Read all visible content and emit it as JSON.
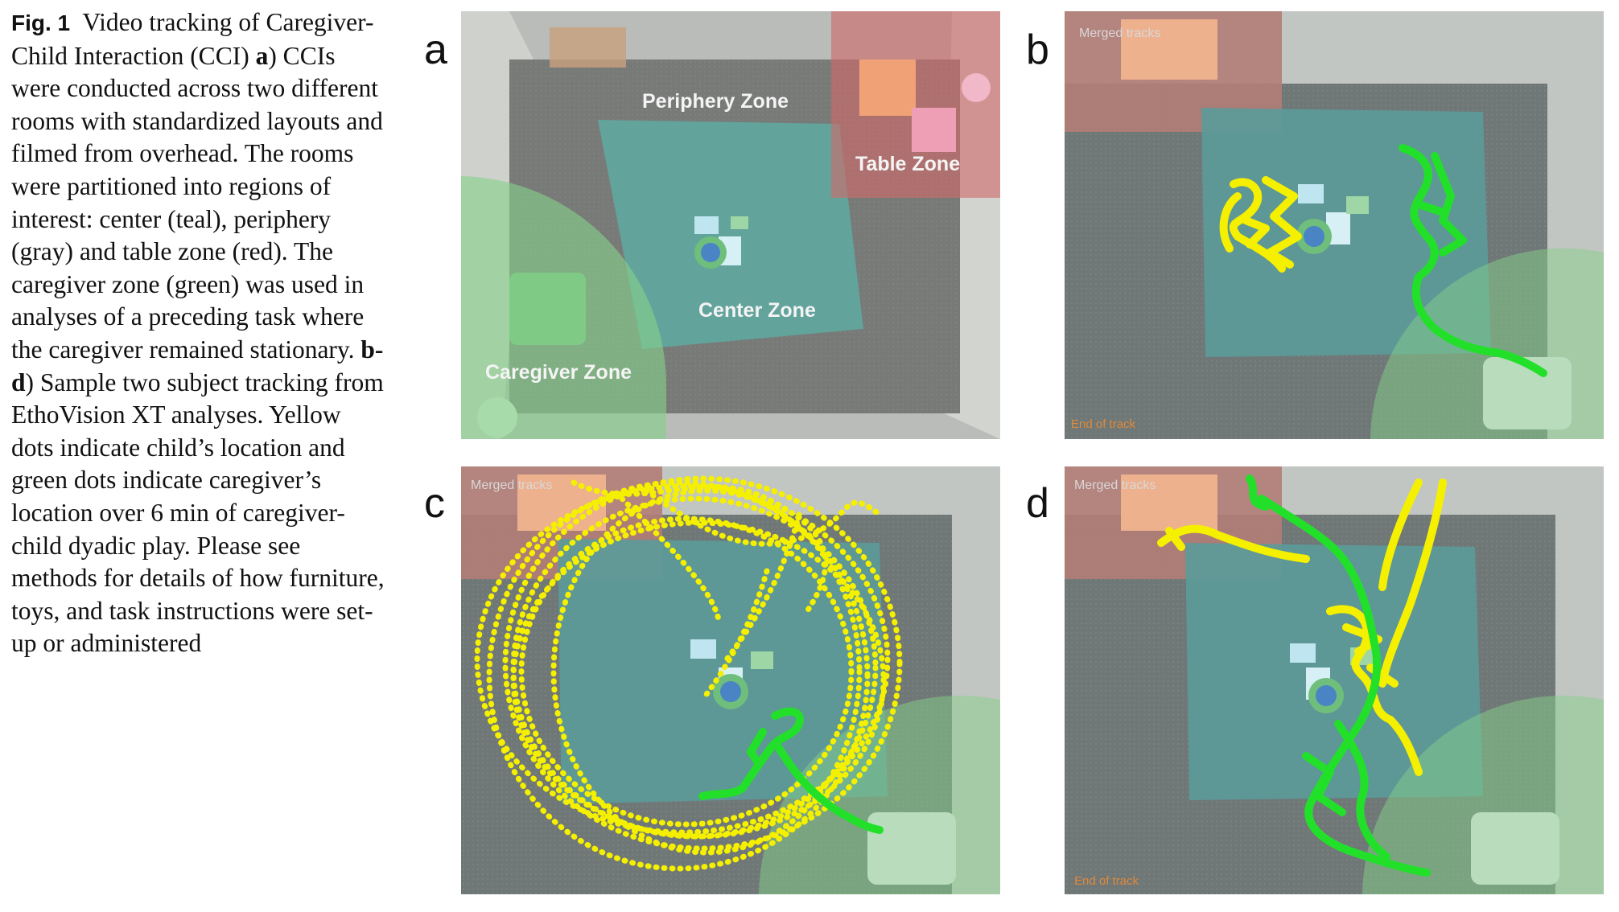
{
  "caption": {
    "fig_label": "Fig. 1",
    "title": "Video tracking of Caregiver-Child Interaction (CCI)",
    "a_label": "a",
    "a_text": ") CCIs were conducted across two different rooms with standardized layouts and filmed from overhead. The rooms were partitioned into regions of interest: center (teal), periphery (gray) and table zone (red). The caregiver zone (green) was used in analyses of a preceding task where the caregiver remained stationary.",
    "bd_label": "b-d",
    "bd_text": ") Sample two subject tracking from EthoVision XT analyses. Yellow dots indicate child’s location and green dots indicate caregiver’s location over 6 min of caregiver-child dyadic play. Please see methods for details of how furniture, toys, and task instructions were set-up or administered"
  },
  "panels": {
    "a": {
      "label": "a",
      "zones": {
        "periphery": "Periphery Zone",
        "table": "Table Zone",
        "center": "Center Zone",
        "caregiver": "Caregiver Zone"
      }
    },
    "b": {
      "label": "b",
      "overlay": "Merged tracks",
      "end": "End of track"
    },
    "c": {
      "label": "c",
      "overlay": "Merged tracks"
    },
    "d": {
      "label": "d",
      "overlay": "Merged tracks",
      "end": "End of track"
    }
  },
  "colors": {
    "center_zone": "#5fa7a0",
    "periphery_zone": "#8a8b89",
    "table_zone": "#d06a6a",
    "caregiver_zone": "#86d08a",
    "child_track": "#f5f000",
    "caregiver_track": "#22e02a"
  }
}
